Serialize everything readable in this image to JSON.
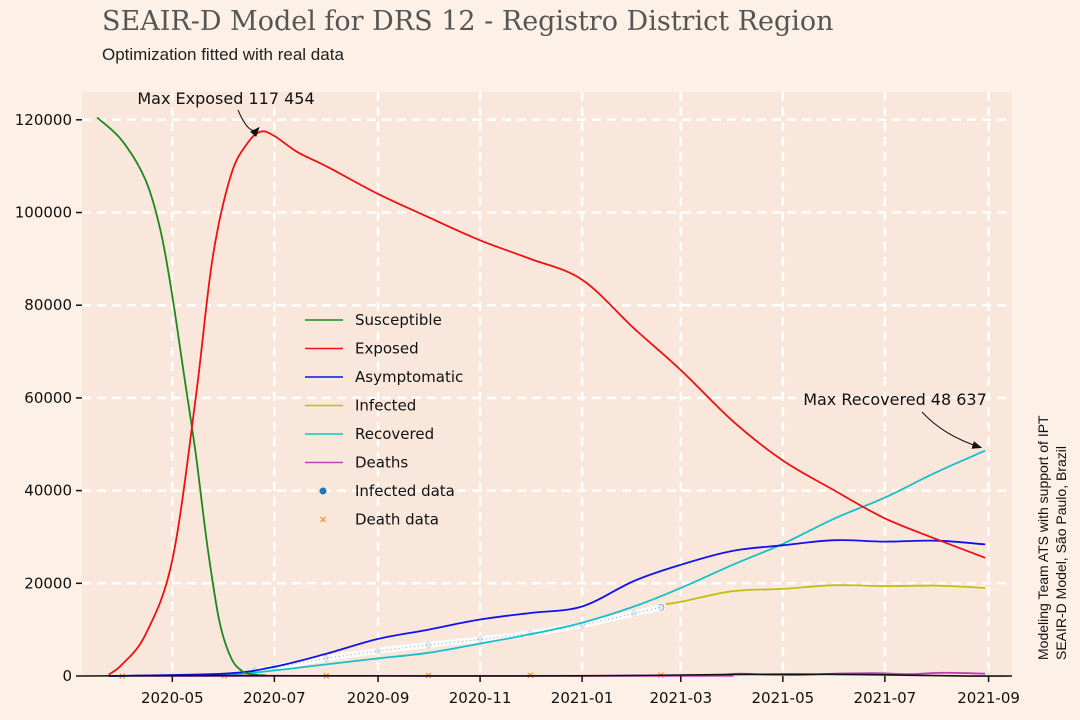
{
  "title": "SEAIR-D Model for DRS 12 - Registro District Region",
  "subtitle": "Optimization fitted with real data",
  "credit_line1": "Modeling Team ATS with support of IPT",
  "credit_line2": "SEAIR-D Model, São Paulo, Brazil",
  "colors": {
    "background": "#fdf0e6",
    "plot_bg": "#f9e7dc",
    "grid": "#ffffff",
    "Susceptible": "#1a8a1a",
    "Exposed": "#ee1111",
    "Asymptomatic": "#1111ee",
    "Infected": "#bfbf11",
    "Recovered": "#17c0c8",
    "Deaths": "#bf3fbf",
    "Infected data": "#1f77b4",
    "Death data": "#ff7f0e"
  },
  "chart_data": {
    "type": "line",
    "xlabel": "",
    "ylabel": "",
    "x_range": [
      "2020-03-08",
      "2021-09-15"
    ],
    "ylim": [
      0,
      126000
    ],
    "grid": true,
    "legend_position": "center-left",
    "x_ticks": [
      "2020-05",
      "2020-07",
      "2020-09",
      "2020-11",
      "2021-01",
      "2021-03",
      "2021-05",
      "2021-07",
      "2021-09"
    ],
    "x_tick_dates": [
      "2020-05-01",
      "2020-07-01",
      "2020-09-01",
      "2020-11-01",
      "2021-01-01",
      "2021-03-01",
      "2021-05-01",
      "2021-07-01",
      "2021-09-01"
    ],
    "y_ticks": [
      0,
      20000,
      40000,
      60000,
      80000,
      100000,
      120000
    ],
    "series": [
      {
        "name": "Susceptible",
        "kind": "line",
        "x": [
          "2020-03-17",
          "2020-04-01",
          "2020-04-15",
          "2020-04-24",
          "2020-05-01",
          "2020-05-08",
          "2020-05-15",
          "2020-05-22",
          "2020-05-29",
          "2020-06-05",
          "2020-06-12",
          "2020-06-19",
          "2020-06-26"
        ],
        "y": [
          120500,
          115500,
          107000,
          96000,
          82000,
          65000,
          48000,
          28000,
          12000,
          4000,
          1000,
          300,
          100
        ]
      },
      {
        "name": "Exposed",
        "kind": "line",
        "x": [
          "2020-03-24",
          "2020-04-01",
          "2020-04-15",
          "2020-05-01",
          "2020-05-15",
          "2020-05-25",
          "2020-06-05",
          "2020-06-15",
          "2020-06-23",
          "2020-07-01",
          "2020-07-15",
          "2020-08-01",
          "2020-09-01",
          "2020-10-01",
          "2020-11-01",
          "2020-12-01",
          "2021-01-01",
          "2021-02-01",
          "2021-03-01",
          "2021-04-01",
          "2021-05-01",
          "2021-06-01",
          "2021-07-01",
          "2021-08-01",
          "2021-08-30"
        ],
        "y": [
          300,
          2500,
          9000,
          25000,
          60000,
          90000,
          108000,
          115000,
          117454,
          116500,
          113000,
          110000,
          104000,
          99000,
          94000,
          90000,
          85500,
          75000,
          66000,
          55000,
          46500,
          40000,
          34000,
          29500,
          25500
        ]
      },
      {
        "name": "Asymptomatic",
        "kind": "line",
        "x": [
          "2020-03-24",
          "2020-06-01",
          "2020-07-01",
          "2020-08-01",
          "2020-09-01",
          "2020-10-01",
          "2020-11-01",
          "2020-12-01",
          "2021-01-01",
          "2021-02-01",
          "2021-03-01",
          "2021-04-01",
          "2021-05-01",
          "2021-06-01",
          "2021-07-01",
          "2021-08-01",
          "2021-08-30"
        ],
        "y": [
          0,
          500,
          2000,
          4800,
          8000,
          10000,
          12200,
          13600,
          15000,
          20500,
          24000,
          27000,
          28200,
          29300,
          29000,
          29200,
          28400
        ]
      },
      {
        "name": "Infected",
        "kind": "line",
        "x": [
          "2021-02-20",
          "2021-03-01",
          "2021-04-01",
          "2021-05-01",
          "2021-06-01",
          "2021-07-01",
          "2021-08-01",
          "2021-08-30"
        ],
        "y": [
          15500,
          16000,
          18300,
          18800,
          19600,
          19400,
          19500,
          19000
        ]
      },
      {
        "name": "Recovered",
        "kind": "line",
        "x": [
          "2020-03-24",
          "2020-06-01",
          "2020-07-01",
          "2020-08-01",
          "2020-09-01",
          "2020-10-01",
          "2020-11-01",
          "2020-12-01",
          "2021-01-01",
          "2021-02-01",
          "2021-03-01",
          "2021-04-01",
          "2021-05-01",
          "2021-06-01",
          "2021-07-01",
          "2021-08-01",
          "2021-08-30"
        ],
        "y": [
          0,
          300,
          1200,
          2500,
          3800,
          5000,
          7000,
          9000,
          11500,
          15000,
          19000,
          24000,
          28500,
          34000,
          38500,
          44000,
          48637
        ]
      },
      {
        "name": "Deaths",
        "kind": "line",
        "x": [
          "2020-03-24",
          "2021-03-01",
          "2021-03-20",
          "2021-04-05",
          "2021-04-20",
          "2021-05-10",
          "2021-06-01",
          "2021-06-25",
          "2021-07-15",
          "2021-08-05",
          "2021-08-30"
        ],
        "y": [
          0,
          50,
          100,
          500,
          300,
          200,
          500,
          600,
          400,
          700,
          500
        ]
      },
      {
        "name": "Infected data",
        "kind": "scatter",
        "x": [
          "2020-06-20",
          "2020-07-01",
          "2020-08-01",
          "2020-09-01",
          "2020-10-01",
          "2020-11-01",
          "2020-12-01",
          "2021-01-01",
          "2021-02-01",
          "2021-02-17"
        ],
        "y": [
          1200,
          1800,
          3800,
          5400,
          6700,
          7900,
          9200,
          11000,
          13500,
          14800
        ]
      },
      {
        "name": "Death data",
        "kind": "scatter",
        "x": [
          "2020-04-01",
          "2020-06-01",
          "2020-08-01",
          "2020-10-01",
          "2020-12-01",
          "2021-02-17"
        ],
        "y": [
          0,
          20,
          60,
          100,
          160,
          200
        ]
      }
    ],
    "annotations": [
      {
        "text": "Max Exposed 117 454",
        "x": "2020-06-23",
        "y": 117454
      },
      {
        "text": "Max Recovered 48 637",
        "x": "2021-08-30",
        "y": 48637
      }
    ]
  }
}
